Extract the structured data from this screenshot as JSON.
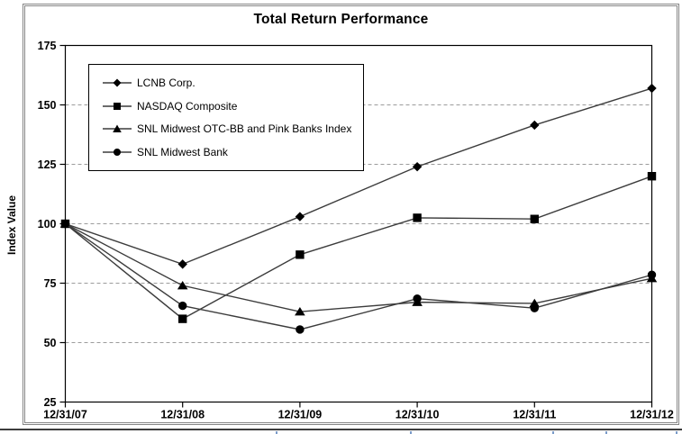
{
  "chart_data": {
    "type": "line",
    "title": "Total Return Performance",
    "xlabel": "",
    "ylabel": "Index Value",
    "x_labels": [
      "12/31/07",
      "12/31/08",
      "12/31/09",
      "12/31/10",
      "12/31/11",
      "12/31/12"
    ],
    "ylim": [
      25,
      175
    ],
    "yticks": [
      25,
      50,
      75,
      100,
      125,
      150,
      175
    ],
    "grid": "horizontal-dashed",
    "legend_position": "top-left-inside-box",
    "series": [
      {
        "name": "LCNB Corp.",
        "marker": "diamond",
        "values": [
          100,
          83,
          103,
          124,
          141.5,
          157
        ]
      },
      {
        "name": "NASDAQ Composite",
        "marker": "square",
        "values": [
          100,
          60,
          87,
          102.5,
          102,
          120
        ]
      },
      {
        "name": "SNL Midwest OTC-BB and Pink Banks Index",
        "marker": "triangle",
        "values": [
          100,
          74,
          63,
          67,
          66.5,
          77
        ]
      },
      {
        "name": "SNL Midwest Bank",
        "marker": "circle",
        "values": [
          100,
          65.5,
          55.5,
          68.5,
          64.5,
          78.5
        ]
      }
    ],
    "line_color": "#3c3c3c",
    "marker_color": "#000000",
    "gridline_color": "#9c9c9c",
    "axis_color": "#000000"
  }
}
